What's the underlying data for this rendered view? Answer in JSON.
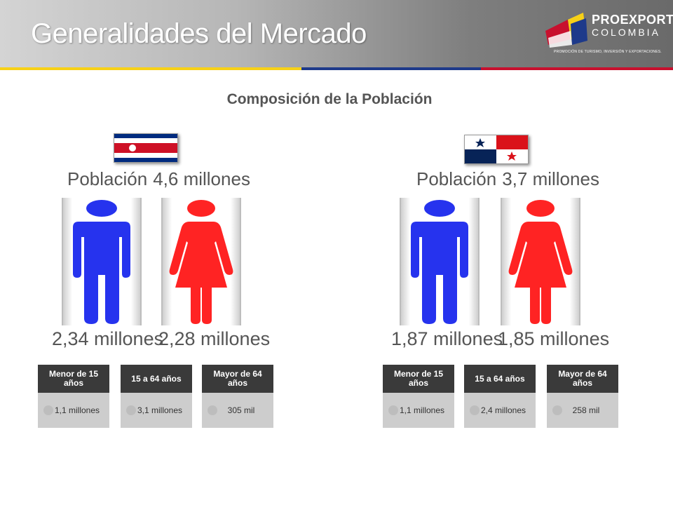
{
  "header": {
    "title": "Generalidades del Mercado",
    "logo": {
      "name": "PROEXPORT",
      "country": "COLOMBIA",
      "tagline": "PROMOCIÓN DE TURISMO, INVERSIÓN Y EXPORTACIONES."
    }
  },
  "subtitle": "Composición de la Población",
  "colors": {
    "male": "#2633ee",
    "female": "#ff2323",
    "stripe_yellow": "#f7d117",
    "stripe_blue": "#1e3a8a",
    "stripe_red": "#c8102e"
  },
  "countries": [
    {
      "flag": "costa-rica-flag",
      "population_label": "Población",
      "population_value": "4,6 millones",
      "male": "2,34 millones",
      "female": "2,28 millones",
      "groups": [
        {
          "label": "Menor de 15 años",
          "value": "1,1 millones"
        },
        {
          "label": "15 a 64 años",
          "value": "3,1 millones"
        },
        {
          "label": "Mayor de 64 años",
          "value": "305 mil"
        }
      ]
    },
    {
      "flag": "panama-flag",
      "population_label": "Población",
      "population_value": "3,7 millones",
      "male": "1,87 millones",
      "female": "1,85 millones",
      "groups": [
        {
          "label": "Menor de 15 años",
          "value": "1,1 millones"
        },
        {
          "label": "15 a 64 años",
          "value": "2,4 millones"
        },
        {
          "label": "Mayor de 64 años",
          "value": "258 mil"
        }
      ]
    }
  ]
}
